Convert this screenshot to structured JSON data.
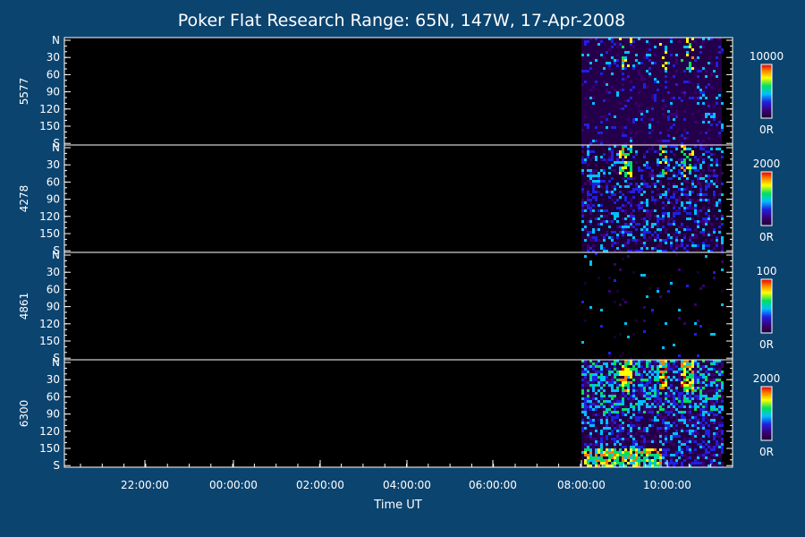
{
  "chart_data": {
    "type": "heatmap",
    "title": "Poker Flat Research Range: 65N, 147W, 17-Apr-2008",
    "xlabel": "Time UT",
    "x_ticks": [
      "22:00:00",
      "00:00:00",
      "02:00:00",
      "04:00:00",
      "06:00:00",
      "08:00:00",
      "10:00:00"
    ],
    "y_ticks": [
      "N",
      "30",
      "60",
      "90",
      "120",
      "150",
      "S"
    ],
    "y_range": [
      0,
      180
    ],
    "data_start": "08:00:00",
    "panels": [
      {
        "label": "5577",
        "scale_max": "10000",
        "scale_min": "0R"
      },
      {
        "label": "4278",
        "scale_max": "2000",
        "scale_min": "0R"
      },
      {
        "label": "4861",
        "scale_max": "100",
        "scale_min": "0R"
      },
      {
        "label": "6300",
        "scale_max": "2000",
        "scale_min": "0R"
      }
    ],
    "colorbar": [
      "#1a0030",
      "#3a0070",
      "#2020e0",
      "#00c0ff",
      "#00e060",
      "#ffff00",
      "#ff8000",
      "#e00000"
    ],
    "background": "#0c4470"
  }
}
